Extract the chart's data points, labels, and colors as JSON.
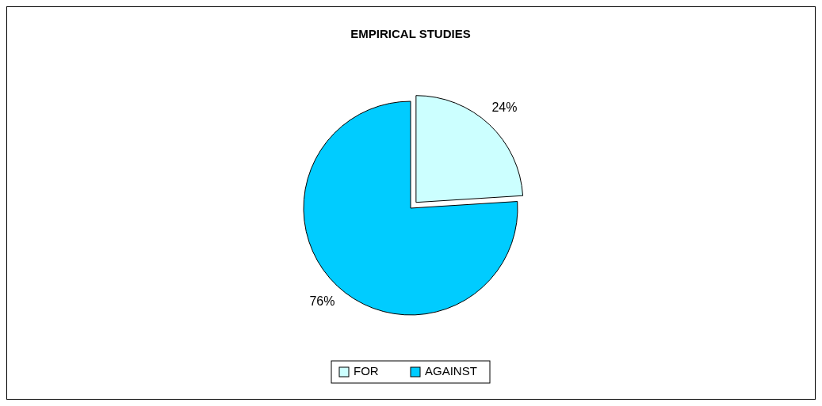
{
  "chart_data": {
    "type": "pie",
    "title": "EMPIRICAL STUDIES",
    "categories": [
      "FOR",
      "AGAINST"
    ],
    "values": [
      24,
      76
    ],
    "colors": [
      "#ccffff",
      "#00ccff"
    ],
    "value_labels": [
      "24%",
      "76%"
    ],
    "legend": "bottom"
  }
}
